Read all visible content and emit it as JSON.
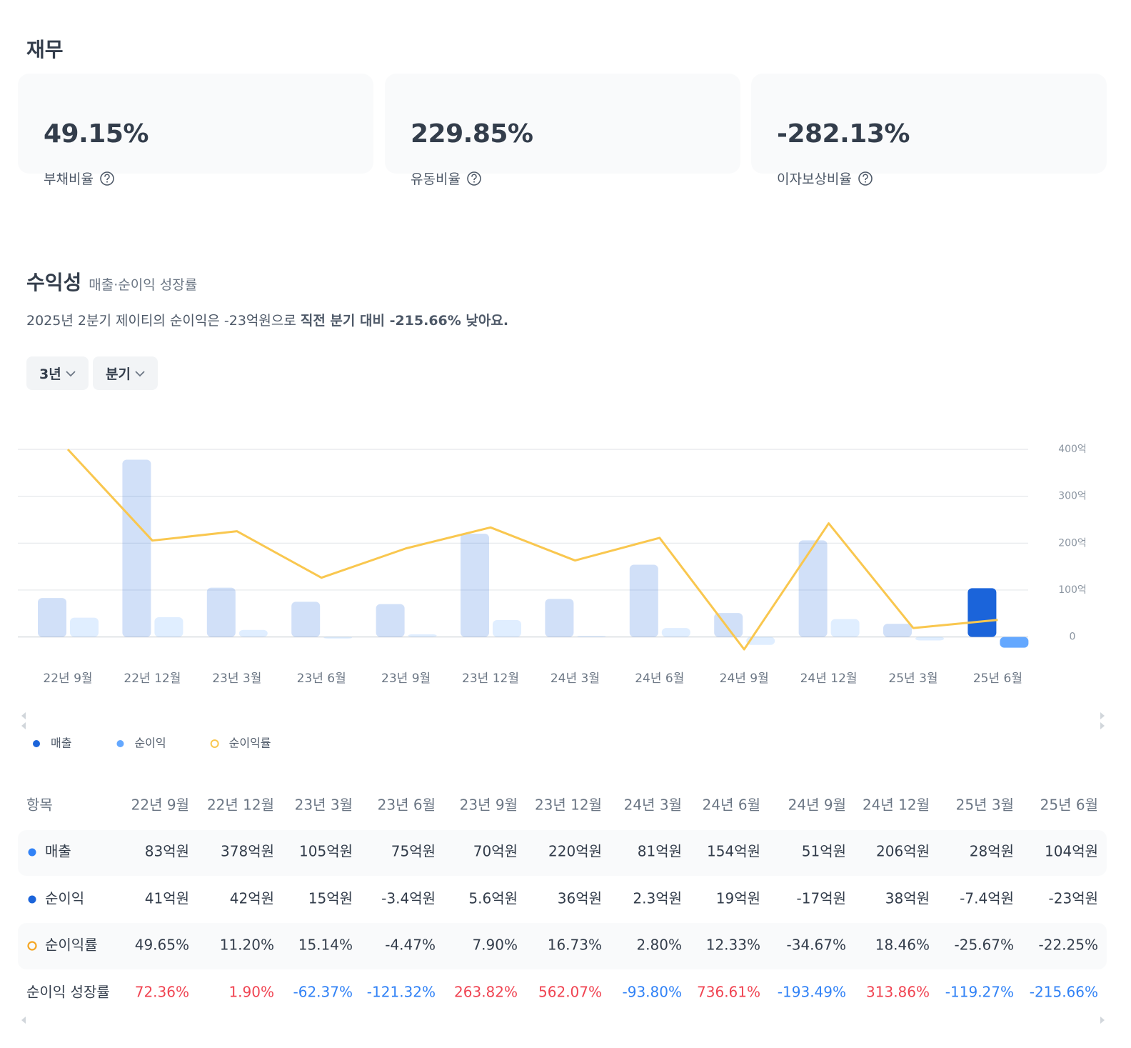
{
  "header": {
    "title": "재무"
  },
  "cards": [
    {
      "label": "부채비율",
      "value": "49.15%"
    },
    {
      "label": "유동비율",
      "value": "229.85%"
    },
    {
      "label": "이자보상비율",
      "value": "-282.13%"
    }
  ],
  "section": {
    "title": "수익성",
    "subtitle": "매출·순이익 성장률",
    "summary": "2025년 2분기 제이티의 순이익은 -23억원으로",
    "summary_emphasis": "직전 분기 대비 -215.66% 낮아요.",
    "filters": [
      "3년",
      "분기"
    ]
  },
  "chart_data": {
    "type": "bar",
    "categories": [
      "22년 9월",
      "22년 12월",
      "23년 3월",
      "23년 6월",
      "23년 9월",
      "23년 12월",
      "24년 3월",
      "24년 6월",
      "24년 9월",
      "24년 12월",
      "25년 3월",
      "25년 6월"
    ],
    "series": [
      {
        "name": "매출",
        "color": "#1b64da",
        "values": [
          83,
          378,
          105,
          75,
          70,
          220,
          81,
          154,
          51,
          206,
          28,
          104
        ],
        "value_labels": [
          "83억원",
          "378억원",
          "105억원",
          "75억원",
          "70억원",
          "220억원",
          "81억원",
          "154억원",
          "51억원",
          "206억원",
          "28억원",
          "104억원"
        ]
      },
      {
        "name": "순이익",
        "color": "#64a8ff",
        "values": [
          41,
          42,
          15,
          -3.4,
          5.6,
          36,
          2.3,
          19,
          -17,
          38,
          -7.4,
          -23
        ],
        "value_labels": [
          "41억원",
          "42억원",
          "15억원",
          "-3.4억원",
          "5.6억원",
          "36억원",
          "2.3억원",
          "19억원",
          "-17억원",
          "38억원",
          "-7.4억원",
          "-23억원"
        ]
      },
      {
        "name": "순이익률",
        "type": "line",
        "axis": "y2",
        "color": "#f9c74f",
        "values": [
          49.65,
          11.2,
          15.14,
          -4.47,
          7.9,
          16.73,
          2.8,
          12.33,
          -34.67,
          18.46,
          -25.67,
          -22.25
        ],
        "value_labels": [
          "49.65%",
          "11.20%",
          "15.14%",
          "-4.47%",
          "7.90%",
          "16.73%",
          "2.80%",
          "12.33%",
          "-34.67%",
          "18.46%",
          "-25.67%",
          "-22.25%"
        ]
      }
    ],
    "ylim": [
      -25,
      400
    ],
    "yticks": [
      0,
      {
        "value": 100,
        "label": "100억"
      },
      {
        "value": 200,
        "label": "200억"
      },
      {
        "value": 300,
        "label": "300억"
      },
      {
        "value": 400,
        "label": "400억"
      }
    ],
    "y2lim": [
      -34.67,
      49.65
    ],
    "grid": true,
    "legend": "bottom-left"
  },
  "table": {
    "header": "항목",
    "growth": {
      "name": "순이익 성장률",
      "values": [
        72.36,
        1.9,
        -62.37,
        -121.32,
        263.82,
        562.07,
        -93.8,
        736.61,
        -193.49,
        313.86,
        -119.27,
        -215.66
      ],
      "value_labels": [
        "72.36%",
        "1.90%",
        "-62.37%",
        "-121.32%",
        "263.82%",
        "562.07%",
        "-93.80%",
        "736.61%",
        "-193.49%",
        "313.86%",
        "-119.27%",
        "-215.66%"
      ]
    }
  }
}
